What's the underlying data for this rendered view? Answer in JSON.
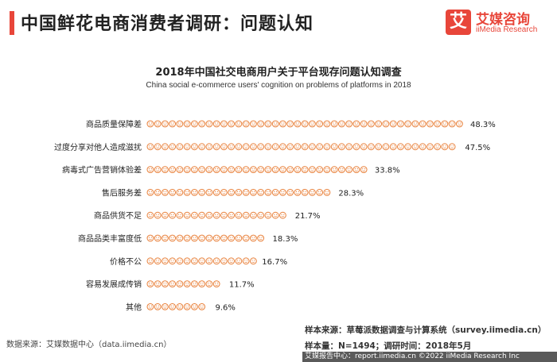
{
  "header": {
    "title": "中国鲜花电商消费者调研：问题认知"
  },
  "brand": {
    "mark": "艾",
    "name_cn": "艾媒咨询",
    "name_en": "iiMedia Research"
  },
  "colors": {
    "accent": "#e8463a",
    "icon": "#e87f38",
    "text": "#222222"
  },
  "chart_data": {
    "type": "bar",
    "title": "2018年中国社交电商用户关于平台现存问题认知调查",
    "subtitle": "China social e-commerce users' cognition on problems of platforms in 2018",
    "categories": [
      "商品质量保障差",
      "过度分享对他人造成滋扰",
      "病毒式广告营销体验差",
      "售后服务差",
      "商品供货不足",
      "商品品类丰富度低",
      "价格不公",
      "容易发展成传销",
      "其他"
    ],
    "values": [
      48.3,
      47.5,
      33.8,
      28.3,
      21.7,
      18.3,
      16.7,
      11.7,
      9.6
    ],
    "value_labels": [
      "48.3%",
      "47.5%",
      "33.8%",
      "28.3%",
      "21.7%",
      "18.3%",
      "16.7%",
      "11.7%",
      "9.6%"
    ],
    "xlabel": "",
    "ylabel": "",
    "orientation": "horizontal",
    "mark": "pictograph-emoji",
    "grid": false,
    "legend": "none"
  },
  "footer": {
    "source": "数据来源：艾媒数据中心（data.iimedia.cn）",
    "sample_source": "样本来源：草莓派数据调查与计算系统（survey.iimedia.cn）",
    "sample_size": "样本量：N=1494；调研时间：2018年5月",
    "report": "艾媒报告中心：report.iimedia.cn  ©2022 iiMedia Research Inc"
  }
}
